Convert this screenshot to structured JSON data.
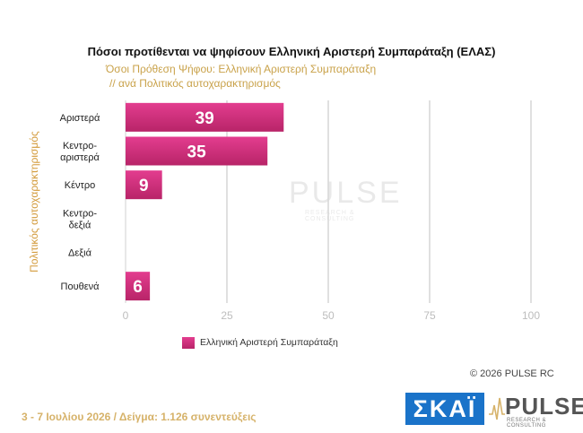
{
  "chart_data": {
    "type": "bar",
    "orientation": "horizontal",
    "title": "Πόσοι προτίθενται να ψηφίσουν Ελληνική Αριστερή Συμπαράταξη (ΕΛΑΣ)",
    "subtitle": "Όσοι Πρόθεση Ψήφου: Ελληνική Αριστερή Συμπαράταξη",
    "subtitle2": "// ανά Πολιτικός  αυτοχαρακτηρισμός",
    "ylabel": "Πολιτικός  αυτοχαρακτηρισμός",
    "xlabel": "",
    "categories": [
      [
        "Αριστερά"
      ],
      [
        "Κεντρο-",
        "αριστερά"
      ],
      [
        "Κέντρο"
      ],
      [
        "Κεντρο-",
        "δεξιά"
      ],
      [
        "Δεξιά"
      ],
      [
        "Πουθενά"
      ]
    ],
    "series": [
      {
        "name": "Ελληνική Αριστερή Συμπαράταξη",
        "values": [
          39,
          35,
          9,
          null,
          null,
          6
        ],
        "color": "#c72b77"
      }
    ],
    "value_labels": [
      "39",
      "35",
      "9",
      "",
      "",
      "6"
    ],
    "xlim": [
      0,
      100
    ],
    "xticks": [
      0,
      25,
      50,
      75,
      100
    ],
    "xtick_labels": [
      "0",
      "25",
      "50",
      "75",
      "100"
    ],
    "grid": true,
    "legend_position": "bottom-left"
  },
  "watermark": {
    "text": "PULSE",
    "subtext": "RESEARCH & CONSULTING"
  },
  "footer": {
    "copyright": "© 2026  PULSE RC",
    "date_sample": "3 - 7  Ιουλίου 2026  /  Δείγμα:  1.126 συνεντεύξεις"
  },
  "logos": {
    "skai": "ΣΚΑΪ",
    "pulse": "PULSE",
    "pulse_sub": "RESEARCH & CONSULTING"
  },
  "colors": {
    "bar_top": "#e33d8f",
    "bar_bottom": "#b82468",
    "grid": "#d9d9d9",
    "subtitle": "#c9a24a",
    "footer_date": "#d6b269",
    "skai_blue": "#1a73c9"
  }
}
